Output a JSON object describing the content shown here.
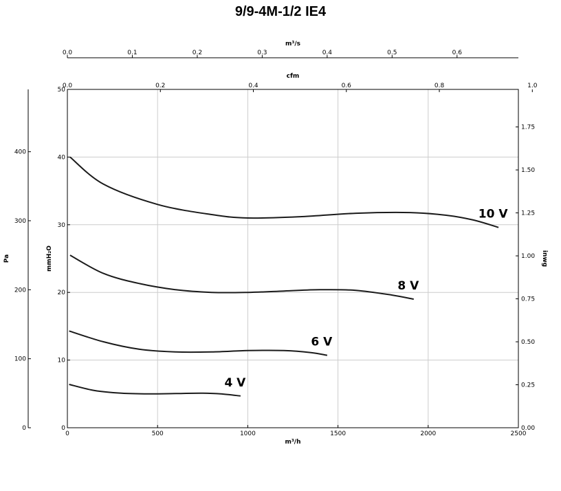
{
  "chart_data": {
    "type": "line",
    "title": "9/9-4M-1/2 IE4",
    "xlabel": "m³/h",
    "xlim": [
      0,
      2500
    ],
    "xticks": [
      0,
      500,
      1000,
      1500,
      2000,
      2500
    ],
    "ylabel": "mmH₂O",
    "ylim": [
      0,
      50
    ],
    "yticks": [
      0,
      10,
      20,
      30,
      40,
      50
    ],
    "grid": true,
    "secondary_axes": {
      "top_outer": {
        "label": "m³/s",
        "factor": 0.000277778,
        "ticks": [
          0.0,
          0.1,
          0.2,
          0.3,
          0.4,
          0.5,
          0.6
        ],
        "tick_labels": [
          "0.0",
          "0.1",
          "0.2",
          "0.3",
          "0.4",
          "0.5",
          "0.6"
        ]
      },
      "top_inner": {
        "label": "cfm",
        "factor": 0.000388,
        "ticks": [
          0.0,
          0.2,
          0.4,
          0.6,
          0.8,
          1.0
        ],
        "tick_labels": [
          "0.0",
          "0.2",
          "0.4",
          "0.6",
          "0.8",
          "1.0"
        ]
      },
      "left_outer": {
        "label": "Pa",
        "factor": 9.80665,
        "ticks": [
          0,
          100,
          200,
          300,
          400
        ],
        "tick_labels": [
          "0",
          "100",
          "200",
          "300",
          "400"
        ]
      },
      "right": {
        "label": "inwg",
        "factor": 0.03937,
        "ticks": [
          0.0,
          0.25,
          0.5,
          0.75,
          1.0,
          1.25,
          1.5,
          1.75
        ],
        "tick_labels": [
          "0.00",
          "0.25",
          "0.50",
          "0.75",
          "1.00",
          "1.25",
          "1.50",
          "1.75"
        ]
      }
    },
    "series": [
      {
        "name": "10 V",
        "x": [
          15,
          200,
          500,
          800,
          1000,
          1300,
          1600,
          1900,
          2100,
          2250,
          2390
        ],
        "y": [
          40.0,
          36.0,
          33.0,
          31.5,
          31.0,
          31.2,
          31.7,
          31.8,
          31.4,
          30.7,
          29.6
        ]
      },
      {
        "name": "8 V",
        "x": [
          15,
          200,
          400,
          600,
          800,
          1000,
          1200,
          1400,
          1600,
          1800,
          1920
        ],
        "y": [
          25.5,
          22.8,
          21.3,
          20.4,
          20.0,
          20.0,
          20.2,
          20.4,
          20.3,
          19.6,
          19.0
        ]
      },
      {
        "name": "6 V",
        "x": [
          10,
          200,
          400,
          600,
          800,
          1000,
          1200,
          1350,
          1440
        ],
        "y": [
          14.3,
          12.7,
          11.6,
          11.2,
          11.2,
          11.4,
          11.4,
          11.1,
          10.7
        ]
      },
      {
        "name": "4 V",
        "x": [
          10,
          150,
          300,
          450,
          600,
          750,
          850,
          960
        ],
        "y": [
          6.4,
          5.5,
          5.1,
          5.0,
          5.05,
          5.1,
          5.0,
          4.7
        ]
      }
    ]
  }
}
